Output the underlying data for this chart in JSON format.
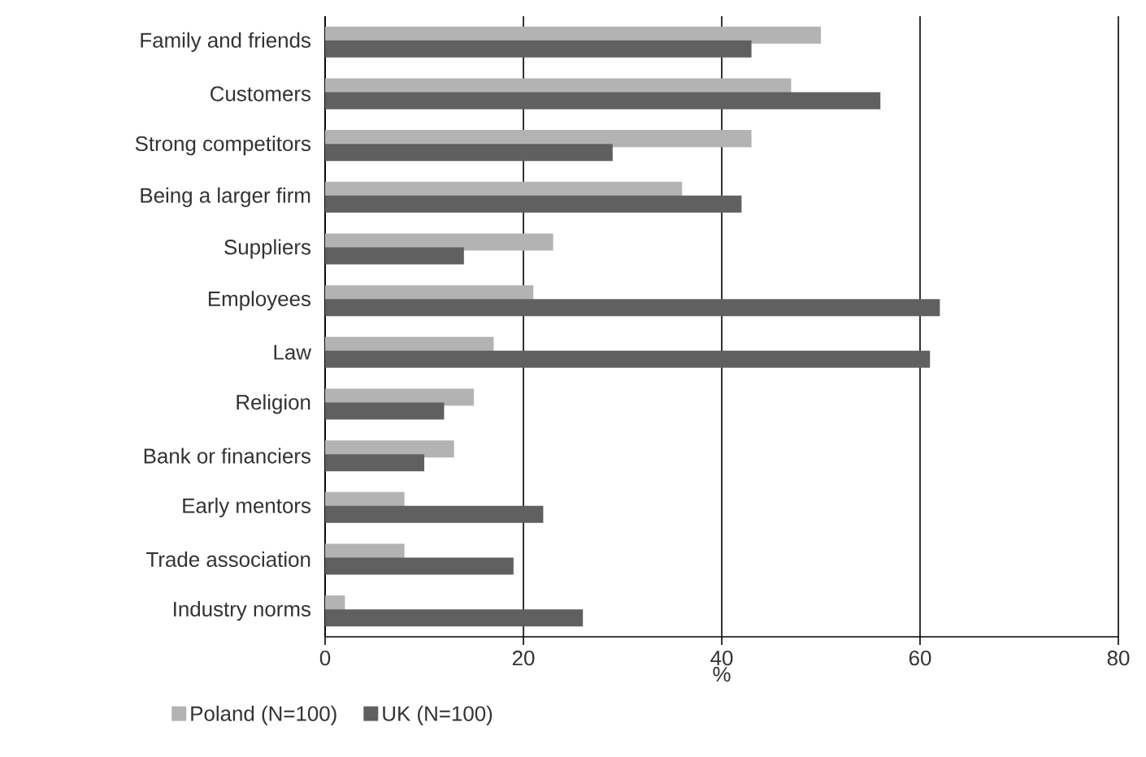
{
  "chart_data": {
    "type": "bar",
    "orientation": "horizontal",
    "xlabel": "%",
    "categories": [
      "Family and friends",
      "Customers",
      "Strong competitors",
      "Being a larger firm",
      "Suppliers",
      "Employees",
      "Law",
      "Religion",
      "Bank or financiers",
      "Early mentors",
      "Trade association",
      "Industry norms"
    ],
    "series": [
      {
        "name": "Poland (N=100)",
        "color": "#b3b3b3",
        "values": [
          50,
          47,
          43,
          36,
          23,
          21,
          17,
          15,
          13,
          8,
          8,
          2
        ]
      },
      {
        "name": "UK (N=100)",
        "color": "#606060",
        "values": [
          43,
          56,
          29,
          42,
          14,
          62,
          61,
          12,
          10,
          22,
          19,
          26
        ]
      }
    ],
    "xlim": [
      0,
      80
    ],
    "xticks": [
      0,
      20,
      40,
      60,
      80
    ],
    "grid": "x",
    "legend": "bottom left"
  }
}
